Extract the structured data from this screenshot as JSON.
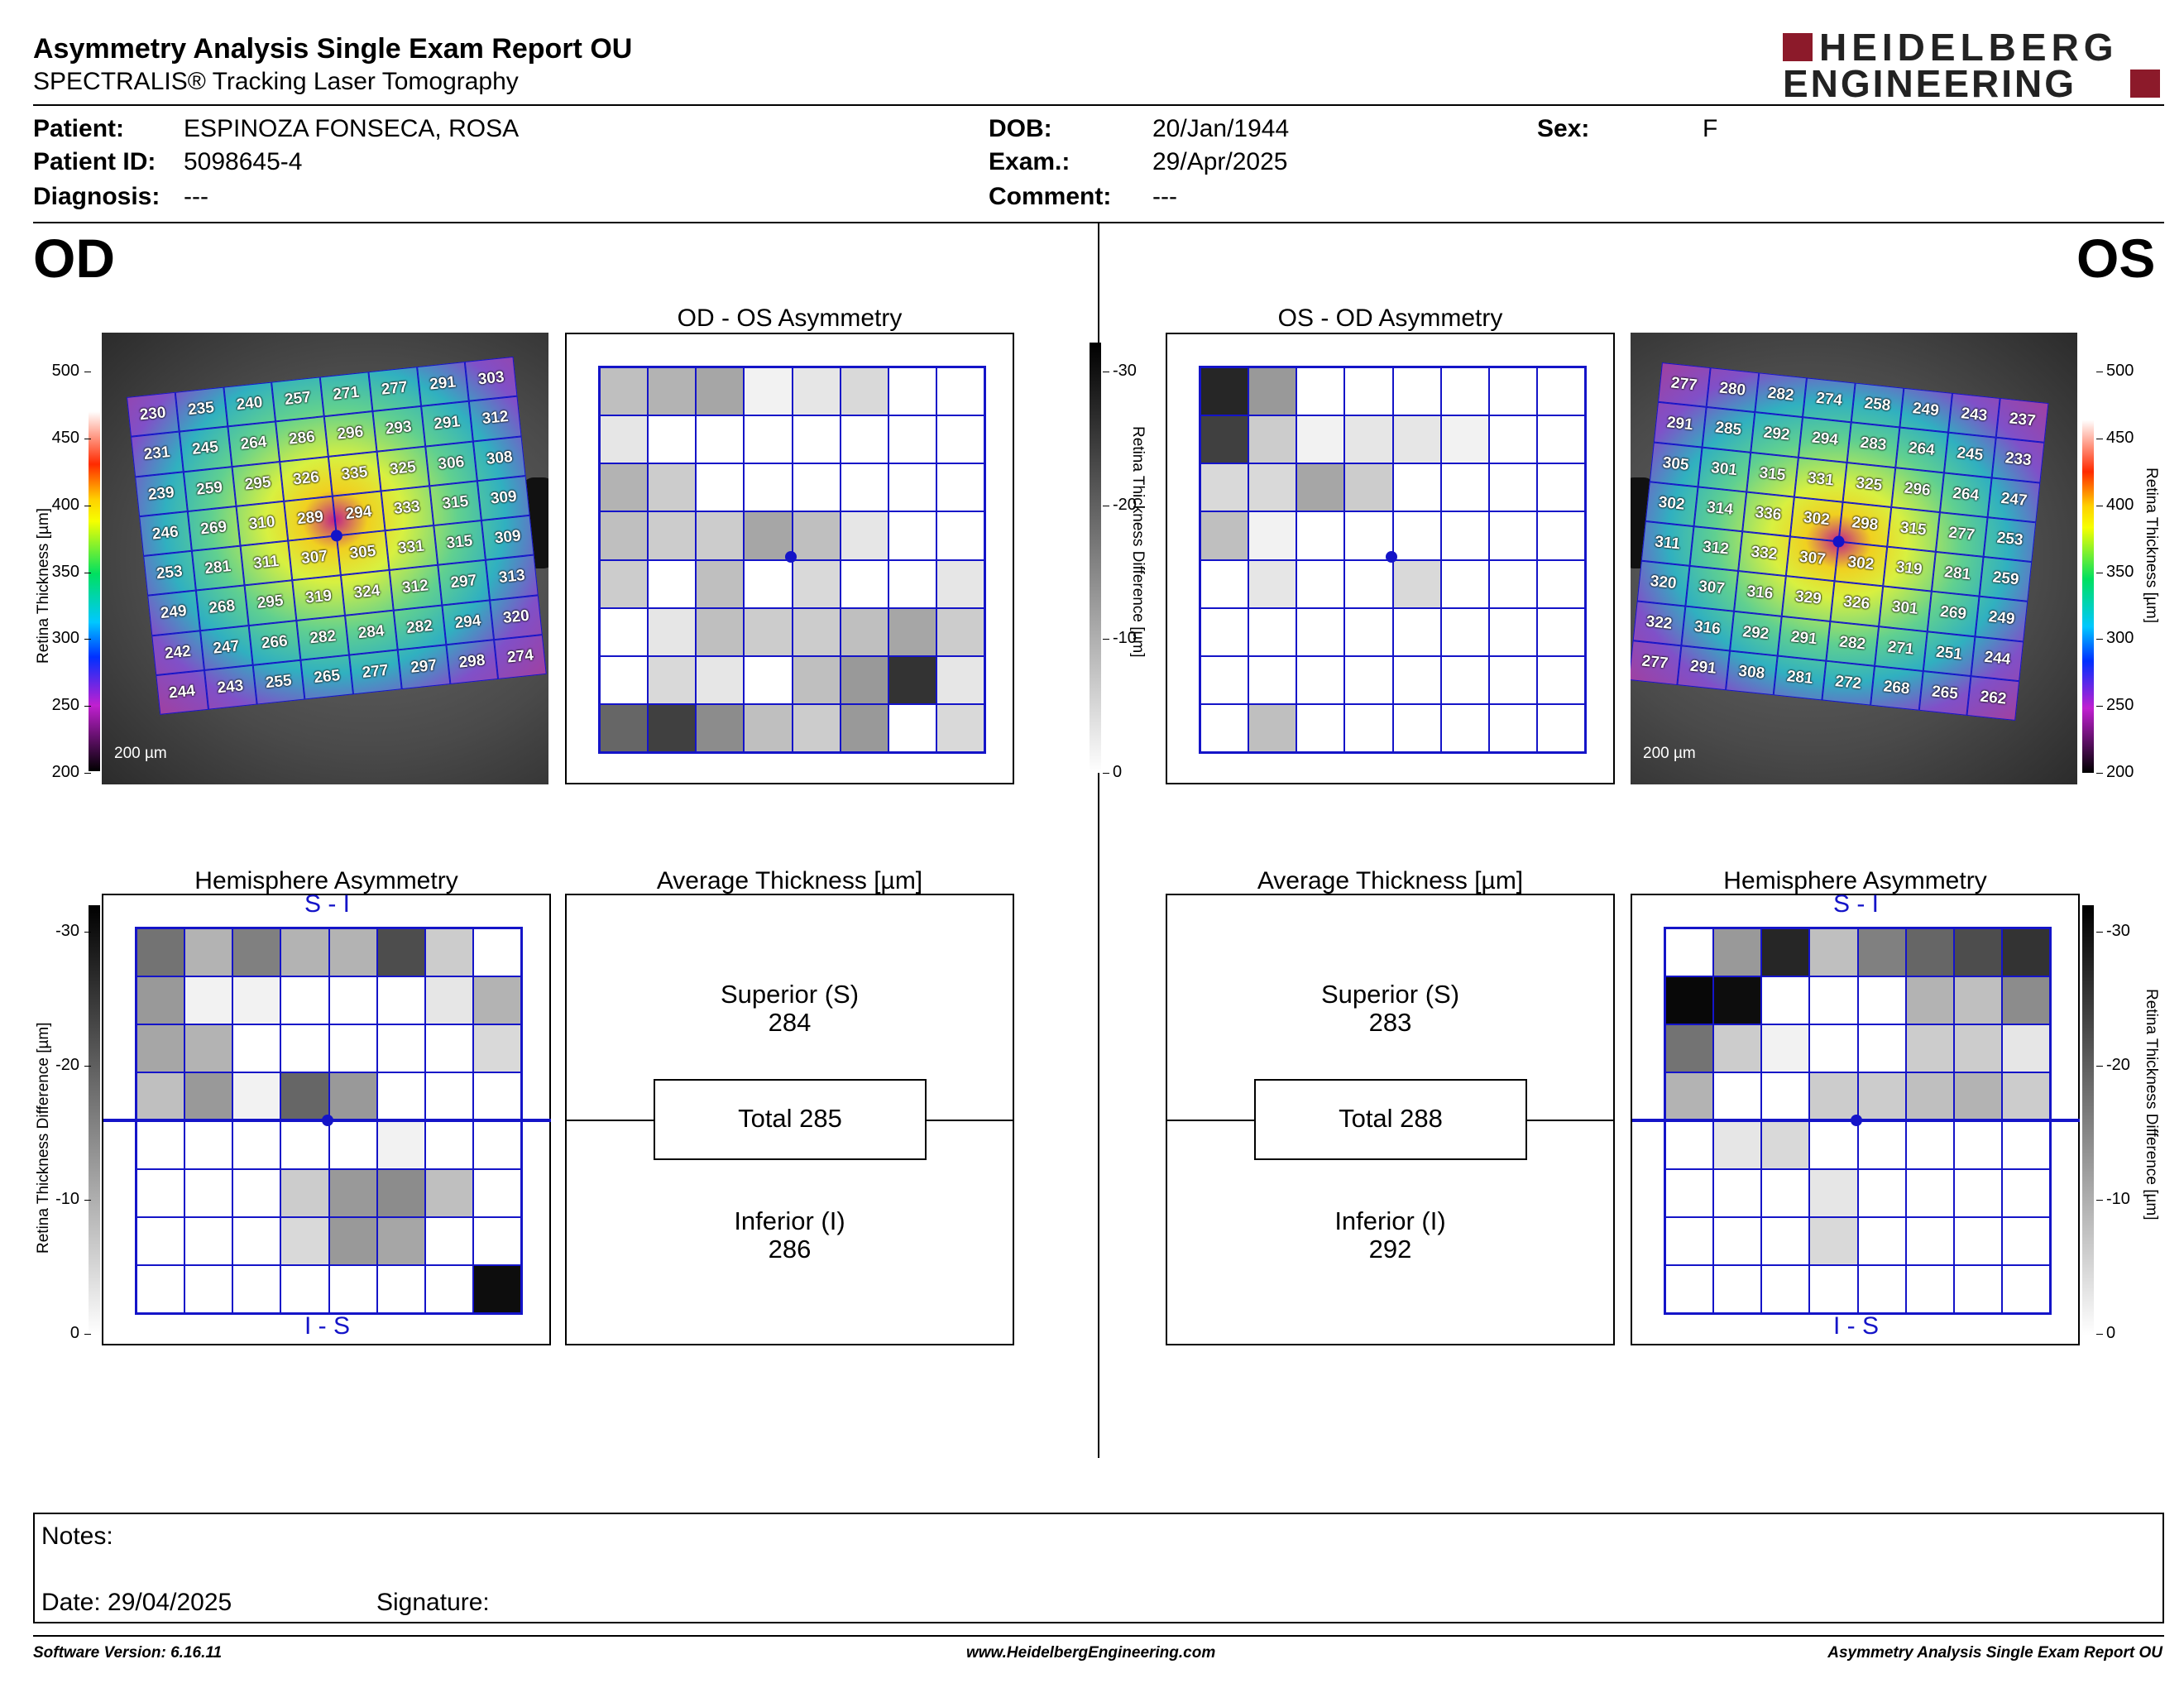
{
  "report": {
    "title": "Asymmetry Analysis Single Exam Report OU",
    "subtitle": "SPECTRALIS® Tracking Laser Tomography",
    "logo_top": "HEIDELBERG",
    "logo_bottom": "ENGINEERING"
  },
  "patient": {
    "patient_label": "Patient:",
    "patient_value": "ESPINOZA FONSECA, ROSA",
    "id_label": "Patient ID:",
    "id_value": "5098645-4",
    "diagnosis_label": "Diagnosis:",
    "diagnosis_value": "---",
    "dob_label": "DOB:",
    "dob_value": "20/Jan/1944",
    "exam_label": "Exam.:",
    "exam_value": "29/Apr/2025",
    "comment_label": "Comment:",
    "comment_value": "---",
    "sex_label": "Sex:",
    "sex_value": "F"
  },
  "od": {
    "eye_label": "OD",
    "asym_title": "OD - OS Asymmetry",
    "hemi_title": "Hemisphere Asymmetry",
    "avg_title": "Average Thickness [µm]",
    "hemi_top": "S - I",
    "hemi_bottom": "I - S",
    "superior_label": "Superior (S)",
    "superior_value": "284",
    "total_label": "Total 285",
    "inferior_label": "Inferior (I)",
    "inferior_value": "286",
    "scale_label": "200 µm",
    "thickness": [
      [
        "230",
        "235",
        "240",
        "257",
        "271",
        "277",
        "291",
        "303"
      ],
      [
        "231",
        "245",
        "264",
        "286",
        "296",
        "293",
        "291",
        "312"
      ],
      [
        "239",
        "259",
        "295",
        "326",
        "335",
        "325",
        "306",
        "308"
      ],
      [
        "246",
        "269",
        "310",
        "289",
        "294",
        "333",
        "315",
        "309"
      ],
      [
        "253",
        "281",
        "311",
        "307",
        "305",
        "331",
        "315",
        "309"
      ],
      [
        "249",
        "268",
        "295",
        "319",
        "324",
        "312",
        "297",
        "313"
      ],
      [
        "242",
        "247",
        "266",
        "282",
        "284",
        "282",
        "294",
        "320"
      ],
      [
        "244",
        "243",
        "255",
        "265",
        "277",
        "297",
        "298",
        "274"
      ]
    ],
    "asym_gray": [
      [
        0.25,
        0.3,
        0.35,
        0.05,
        0.1,
        0.15,
        0,
        0
      ],
      [
        0.1,
        0,
        0,
        0,
        0,
        0,
        0,
        0
      ],
      [
        0.3,
        0.2,
        0,
        0,
        0,
        0,
        0,
        0
      ],
      [
        0.25,
        0.2,
        0.2,
        0.35,
        0.25,
        0.1,
        0,
        0
      ],
      [
        0.2,
        0,
        0.25,
        0,
        0.15,
        0,
        0,
        0.1
      ],
      [
        0,
        0.1,
        0.25,
        0.2,
        0.2,
        0.25,
        0.35,
        0.2
      ],
      [
        0,
        0.15,
        0.1,
        0,
        0.25,
        0.4,
        0.8,
        0.1
      ],
      [
        0.6,
        0.75,
        0.45,
        0.25,
        0.2,
        0.4,
        0,
        0.15
      ]
    ],
    "hemi_gray": [
      [
        0.55,
        0.3,
        0.5,
        0.3,
        0.3,
        0.7,
        0.2,
        0
      ],
      [
        0.4,
        0.05,
        0.05,
        0,
        0,
        0,
        0.1,
        0.3
      ],
      [
        0.35,
        0.3,
        0,
        0,
        0,
        0,
        0,
        0.15
      ],
      [
        0.25,
        0.4,
        0.05,
        0.6,
        0.4,
        0,
        0,
        0
      ],
      [
        0,
        0,
        0,
        0,
        0,
        0.05,
        0,
        0
      ],
      [
        0,
        0,
        0,
        0.2,
        0.4,
        0.45,
        0.25,
        0
      ],
      [
        0,
        0,
        0,
        0.15,
        0.4,
        0.35,
        0,
        0
      ],
      [
        0,
        0,
        0,
        0,
        0,
        0,
        0,
        0.95
      ]
    ]
  },
  "os": {
    "eye_label": "OS",
    "asym_title": "OS - OD Asymmetry",
    "hemi_title": "Hemisphere Asymmetry",
    "avg_title": "Average Thickness [µm]",
    "hemi_top": "S - I",
    "hemi_bottom": "I - S",
    "superior_label": "Superior (S)",
    "superior_value": "283",
    "total_label": "Total 288",
    "inferior_label": "Inferior (I)",
    "inferior_value": "292",
    "scale_label": "200 µm",
    "thickness": [
      [
        "277",
        "280",
        "282",
        "274",
        "258",
        "249",
        "243",
        "237"
      ],
      [
        "291",
        "285",
        "292",
        "294",
        "283",
        "264",
        "245",
        "233"
      ],
      [
        "305",
        "301",
        "315",
        "331",
        "325",
        "296",
        "264",
        "247"
      ],
      [
        "302",
        "314",
        "336",
        "302",
        "298",
        "315",
        "277",
        "253"
      ],
      [
        "311",
        "312",
        "332",
        "307",
        "302",
        "319",
        "281",
        "259"
      ],
      [
        "320",
        "307",
        "316",
        "329",
        "326",
        "301",
        "269",
        "249"
      ],
      [
        "322",
        "316",
        "292",
        "291",
        "282",
        "271",
        "251",
        "244"
      ],
      [
        "277",
        "291",
        "308",
        "281",
        "272",
        "268",
        "265",
        "262"
      ]
    ],
    "asym_gray": [
      [
        0.85,
        0.4,
        0,
        0,
        0,
        0,
        0,
        0
      ],
      [
        0.75,
        0.2,
        0.05,
        0.1,
        0.1,
        0.05,
        0,
        0
      ],
      [
        0.15,
        0.15,
        0.35,
        0.2,
        0,
        0,
        0,
        0
      ],
      [
        0.25,
        0.05,
        0,
        0,
        0,
        0,
        0,
        0
      ],
      [
        0,
        0.1,
        0,
        0,
        0.15,
        0,
        0,
        0
      ],
      [
        0,
        0,
        0,
        0,
        0,
        0,
        0,
        0
      ],
      [
        0,
        0,
        0,
        0,
        0,
        0,
        0,
        0
      ],
      [
        0,
        0.25,
        0,
        0,
        0,
        0,
        0,
        0
      ]
    ],
    "hemi_gray": [
      [
        0,
        0.4,
        0.85,
        0.25,
        0.5,
        0.6,
        0.7,
        0.8
      ],
      [
        0.97,
        0.95,
        0,
        0,
        0,
        0.3,
        0.25,
        0.45
      ],
      [
        0.55,
        0.2,
        0.05,
        0,
        0,
        0.2,
        0.2,
        0.1
      ],
      [
        0.3,
        0,
        0,
        0.2,
        0.2,
        0.25,
        0.3,
        0.2
      ],
      [
        0,
        0.1,
        0.15,
        0,
        0,
        0,
        0,
        0
      ],
      [
        0,
        0,
        0,
        0.1,
        0,
        0,
        0,
        0
      ],
      [
        0,
        0,
        0,
        0.15,
        0,
        0,
        0,
        0
      ],
      [
        0,
        0,
        0,
        0,
        0,
        0,
        0,
        0
      ]
    ]
  },
  "thickness_scale": {
    "label": "Retina Thickness [µm]",
    "ticks": [
      "500",
      "450",
      "400",
      "350",
      "300",
      "250",
      "200"
    ]
  },
  "difference_scale": {
    "label": "Retina Thickness Difference [µm]",
    "ticks": [
      "-30",
      "-20",
      "-10",
      "0"
    ]
  },
  "notes": {
    "notes_label": "Notes:",
    "date_label": "Date: 29/04/2025",
    "signature_label": "Signature:"
  },
  "footer": {
    "software": "Software Version: 6.16.11",
    "website": "www.HeidelbergEngineering.com",
    "report_name": "Asymmetry Analysis Single Exam Report OU"
  },
  "colors": {
    "grid_blue": "#1414c8",
    "logo_red": "#8c1a2a"
  }
}
